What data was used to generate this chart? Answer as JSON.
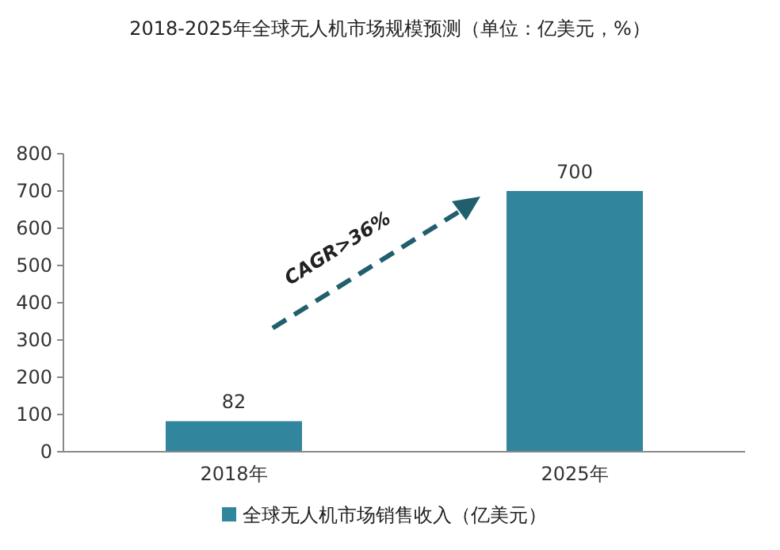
{
  "chart_data": {
    "type": "bar",
    "title": "2018-2025年全球无人机市场规模预测（单位：亿美元，%）",
    "categories": [
      "2018年",
      "2025年"
    ],
    "series": [
      {
        "name": "全球无人机市场销售收入（亿美元）",
        "color": "#31859c",
        "values": [
          82,
          700
        ]
      }
    ],
    "ylim": [
      0,
      800
    ],
    "yticks": [
      0,
      100,
      200,
      300,
      400,
      500,
      600,
      700,
      800
    ],
    "data_labels": true,
    "grid": false,
    "legend": "bottom",
    "annotations": [
      "CAGR>36%"
    ]
  }
}
